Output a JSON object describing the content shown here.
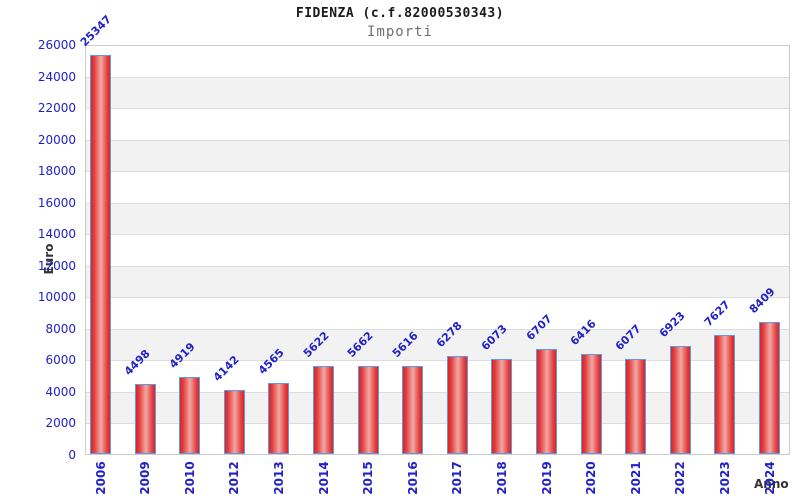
{
  "chart_data": {
    "type": "bar",
    "title": "FIDENZA (c.f.82000530343)",
    "subtitle": "Importi",
    "xlabel": "Anno",
    "ylabel": "Euro",
    "categories": [
      "2006",
      "2009",
      "2010",
      "2012",
      "2013",
      "2014",
      "2015",
      "2016",
      "2017",
      "2018",
      "2019",
      "2020",
      "2021",
      "2022",
      "2023",
      "2024"
    ],
    "values": [
      25347,
      4498,
      4919,
      4142,
      4565,
      5622,
      5662,
      5616,
      6278,
      6073,
      6707,
      6416,
      6077,
      6923,
      7627,
      8409
    ],
    "ylim": [
      0,
      26000
    ],
    "ytick_step": 2000,
    "yticks": [
      0,
      2000,
      4000,
      6000,
      8000,
      10000,
      12000,
      14000,
      16000,
      18000,
      20000,
      22000,
      24000,
      26000
    ],
    "grid": true,
    "legend_position": "none",
    "band_stripes": true,
    "colors": {
      "bar_edge": "#d92525",
      "bar_center": "#f2a8a4",
      "bar_border": "#5b9ce6",
      "tick_text": "#2121c8",
      "value_text": "#2121c8",
      "axis_title_text": "#333333",
      "stripe_gray": "#f2f2f2",
      "gridline": "#dddddd",
      "plot_border": "#cccccc"
    }
  }
}
